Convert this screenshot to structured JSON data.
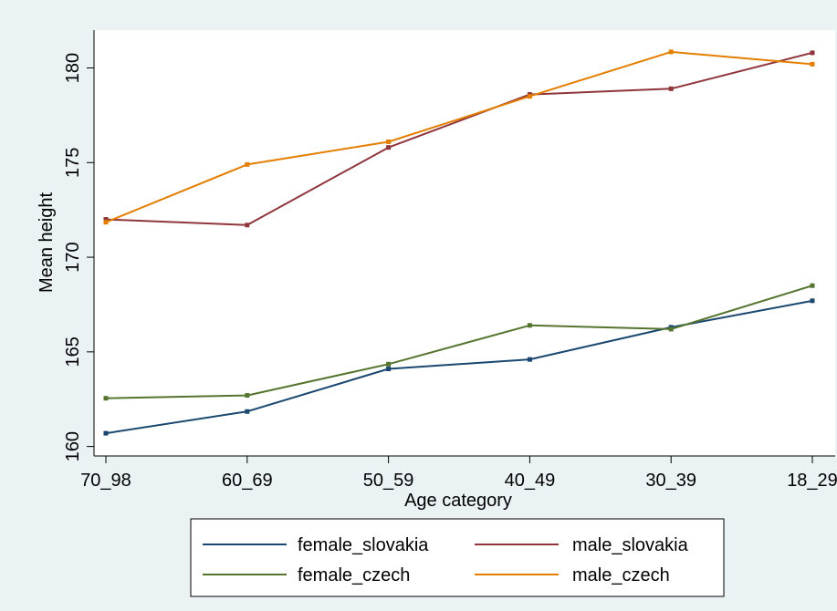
{
  "chart_data": {
    "type": "line",
    "title": "",
    "xlabel": "Age category",
    "ylabel": "Mean height",
    "categories": [
      "70_98",
      "60_69",
      "50_59",
      "40_49",
      "30_39",
      "18_29"
    ],
    "ylim": [
      159.5,
      182
    ],
    "yticks": [
      160,
      165,
      170,
      175,
      180
    ],
    "grid": false,
    "legend_position": "bottom",
    "series": [
      {
        "name": "female_slovakia",
        "color": "#1a476f",
        "values": [
          160.7,
          161.85,
          164.1,
          164.6,
          166.3,
          167.7
        ]
      },
      {
        "name": "male_slovakia",
        "color": "#90353b",
        "values": [
          172.0,
          171.7,
          175.8,
          178.6,
          178.9,
          180.8
        ]
      },
      {
        "name": "female_czech",
        "color": "#55752f",
        "values": [
          162.55,
          162.7,
          164.35,
          166.4,
          166.2,
          168.5
        ]
      },
      {
        "name": "male_czech",
        "color": "#e37e00",
        "values": [
          171.85,
          174.9,
          176.1,
          178.5,
          180.85,
          180.2
        ]
      }
    ]
  }
}
